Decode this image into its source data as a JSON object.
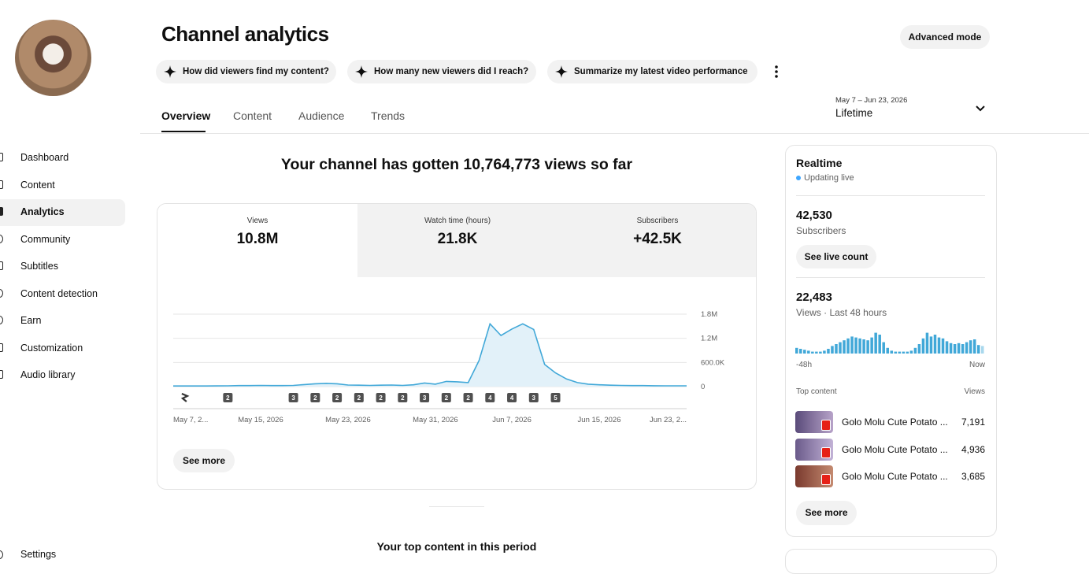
{
  "sidebar": {
    "items": [
      "Dashboard",
      "Content",
      "Analytics",
      "Community",
      "Subtitles",
      "Content detection",
      "Earn",
      "Customization",
      "Audio library"
    ],
    "settings": "Settings"
  },
  "header": {
    "title": "Channel analytics",
    "advanced_button": "Advanced mode",
    "prompts": [
      "How did viewers find my content?",
      "How many new viewers did I reach?",
      "Summarize my latest video performance"
    ],
    "tabs": [
      "Overview",
      "Content",
      "Audience",
      "Trends"
    ],
    "date_range": "May 7 – Jun 23, 2026",
    "period": "Lifetime"
  },
  "summary": "Your channel has gotten 10,764,773 views so far",
  "metrics": [
    {
      "label": "Views",
      "value": "10.8M"
    },
    {
      "label": "Watch time (hours)",
      "value": "21.8K"
    },
    {
      "label": "Subscribers",
      "value": "+42.5K"
    }
  ],
  "chart_data": [
    {
      "type": "line",
      "color": "#41a8d8",
      "area_color": "#e2f1f9",
      "grid": true,
      "x": [
        "2026-05-07",
        "2026-05-08",
        "2026-05-09",
        "2026-05-10",
        "2026-05-11",
        "2026-05-12",
        "2026-05-13",
        "2026-05-14",
        "2026-05-15",
        "2026-05-16",
        "2026-05-17",
        "2026-05-18",
        "2026-05-19",
        "2026-05-20",
        "2026-05-21",
        "2026-05-22",
        "2026-05-23",
        "2026-05-24",
        "2026-05-25",
        "2026-05-26",
        "2026-05-27",
        "2026-05-28",
        "2026-05-29",
        "2026-05-30",
        "2026-05-31",
        "2026-06-01",
        "2026-06-02",
        "2026-06-03",
        "2026-06-04",
        "2026-06-05",
        "2026-06-06",
        "2026-06-07",
        "2026-06-08",
        "2026-06-09",
        "2026-06-10",
        "2026-06-11",
        "2026-06-12",
        "2026-06-13",
        "2026-06-14",
        "2026-06-15",
        "2026-06-16",
        "2026-06-17",
        "2026-06-18",
        "2026-06-19",
        "2026-06-20",
        "2026-06-21",
        "2026-06-22",
        "2026-06-23"
      ],
      "values": [
        15000,
        15000,
        15000,
        16000,
        18000,
        20000,
        25000,
        25000,
        30000,
        25000,
        25000,
        30000,
        50000,
        70000,
        80000,
        70000,
        40000,
        35000,
        30000,
        35000,
        40000,
        30000,
        45000,
        90000,
        60000,
        130000,
        120000,
        100000,
        650000,
        1560000,
        1270000,
        1430000,
        1560000,
        1420000,
        550000,
        340000,
        190000,
        100000,
        60000,
        45000,
        35000,
        30000,
        25000,
        25000,
        22000,
        20000,
        20000,
        20000
      ],
      "xlim": [
        "2026-05-07",
        "2026-06-23"
      ],
      "xticks": [
        {
          "value": "2026-05-07",
          "label": "May 7, 2..."
        },
        {
          "value": "2026-05-15",
          "label": "May 15, 2026"
        },
        {
          "value": "2026-05-23",
          "label": "May 23, 2026"
        },
        {
          "value": "2026-05-31",
          "label": "May 31, 2026"
        },
        {
          "value": "2026-06-07",
          "label": "Jun 7, 2026"
        },
        {
          "value": "2026-06-15",
          "label": "Jun 15, 2026"
        },
        {
          "value": "2026-06-23",
          "label": "Jun 23, 2..."
        }
      ],
      "ylim": [
        0,
        1800000
      ],
      "yticks": [
        0,
        {
          "value": 600000,
          "label": "600.0K"
        },
        {
          "value": 1200000,
          "label": "1.2M"
        },
        {
          "value": 1800000,
          "label": "1.8M"
        }
      ],
      "upload_markers": [
        {
          "x": "2026-05-08",
          "label": null
        },
        {
          "x": "2026-05-12",
          "label": "2"
        },
        {
          "x": "2026-05-18",
          "label": "3"
        },
        {
          "x": "2026-05-20",
          "label": "2"
        },
        {
          "x": "2026-05-22",
          "label": "2"
        },
        {
          "x": "2026-05-24",
          "label": "2"
        },
        {
          "x": "2026-05-26",
          "label": "2"
        },
        {
          "x": "2026-05-28",
          "label": "2"
        },
        {
          "x": "2026-05-30",
          "label": "3"
        },
        {
          "x": "2026-06-01",
          "label": "2"
        },
        {
          "x": "2026-06-03",
          "label": "2"
        },
        {
          "x": "2026-06-05",
          "label": "4"
        },
        {
          "x": "2026-06-07",
          "label": "4"
        },
        {
          "x": "2026-06-09",
          "label": "3"
        },
        {
          "x": "2026-06-11",
          "label": "5"
        }
      ]
    },
    {
      "type": "bar",
      "color": "#41a8d8",
      "ylim": [
        0,
        25
      ],
      "values": [
        6,
        5,
        4,
        3,
        2,
        2,
        2,
        3,
        5,
        8,
        10,
        12,
        14,
        16,
        18,
        17,
        16,
        15,
        14,
        17,
        22,
        20,
        12,
        6,
        3,
        2,
        2,
        2,
        2,
        3,
        6,
        10,
        16,
        22,
        18,
        20,
        17,
        16,
        13,
        11,
        10,
        11,
        10,
        12,
        14,
        15,
        9,
        8
      ],
      "start_label": "-48h",
      "end_label": "Now"
    }
  ],
  "see_more": "See more",
  "top_content_title": "Your top content in this period",
  "realtime": {
    "title": "Realtime",
    "status": "Updating live",
    "subscribers": "42,530",
    "subscribers_label": "Subscribers",
    "live_count_button": "See live count",
    "views": "22,483",
    "views_label": "Views · Last 48 hours",
    "top_content_label": "Top content",
    "views_column": "Views",
    "top_content": [
      {
        "title": "Golo Molu Cute Potato ...",
        "views": "7,191"
      },
      {
        "title": "Golo Molu Cute Potato ...",
        "views": "4,936"
      },
      {
        "title": "Golo Molu Cute Potato ...",
        "views": "3,685"
      }
    ],
    "see_more": "See more"
  }
}
